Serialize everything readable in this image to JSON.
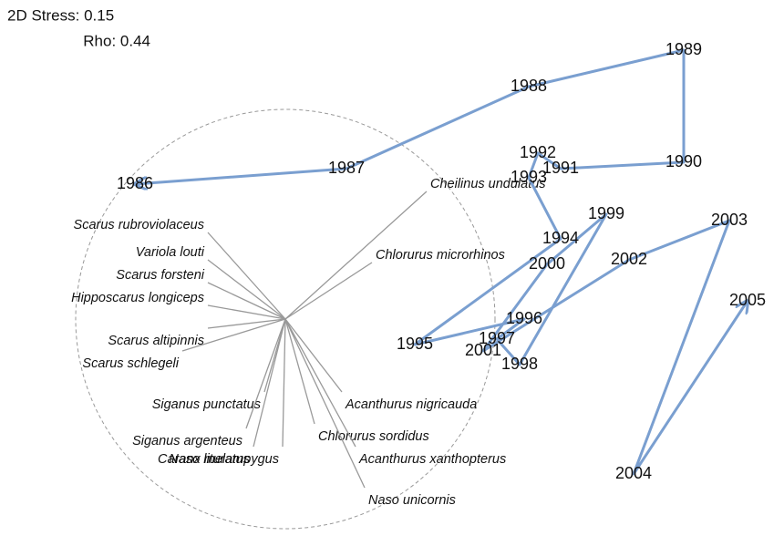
{
  "chart_data": {
    "type": "mds",
    "annotations": [
      "2D Stress: 0.15",
      "Rho: 0.44"
    ],
    "xlim": [
      -313,
      547
    ],
    "ylim": [
      -238,
      350
    ],
    "color": "#7a9fd0",
    "vector_color": "#999999",
    "trajectory": {
      "labels": [
        "1986",
        "1987",
        "1988",
        "1989",
        "1990",
        "1991",
        "1992",
        "1993",
        "1994",
        "1995",
        "1996",
        "1997",
        "1998",
        "1999",
        "2000",
        "2001",
        "2002",
        "2003",
        "2004",
        "2005"
      ],
      "x": [
        -165,
        67,
        267,
        437,
        437,
        302,
        277,
        267,
        302,
        142,
        262,
        232,
        257,
        352,
        287,
        217,
        377,
        487,
        382,
        507
      ],
      "y": [
        148,
        165,
        255,
        295,
        172,
        165,
        182,
        155,
        88,
        -28,
        0,
        -22,
        -50,
        115,
        60,
        -35,
        65,
        108,
        -170,
        20
      ]
    },
    "vectors": {
      "names": [
        "Cheilinus undulatus",
        "Chlorurus microrhinos",
        "Scarus rubroviolaceus",
        "Variola louti",
        "Scarus forsteni",
        "Hipposcarus longiceps",
        "Scarus altipinnis",
        "Scarus schlegeli",
        "Siganus punctatus",
        "Siganus argenteus",
        "Naso lituratus",
        "Caranx melampygus",
        "Chlorurus sordidus",
        "Acanthurus nigricauda",
        "Acanthurus xanthopterus",
        "Naso unicornis"
      ],
      "x": [
        155,
        95,
        -85,
        -85,
        -85,
        -85,
        -85,
        -113,
        -23,
        -43,
        -35,
        -3,
        32,
        62,
        77,
        87
      ],
      "y": [
        140,
        62,
        95,
        65,
        40,
        15,
        -10,
        -35,
        -80,
        -120,
        -140,
        -140,
        -115,
        -80,
        -140,
        -185
      ]
    }
  }
}
